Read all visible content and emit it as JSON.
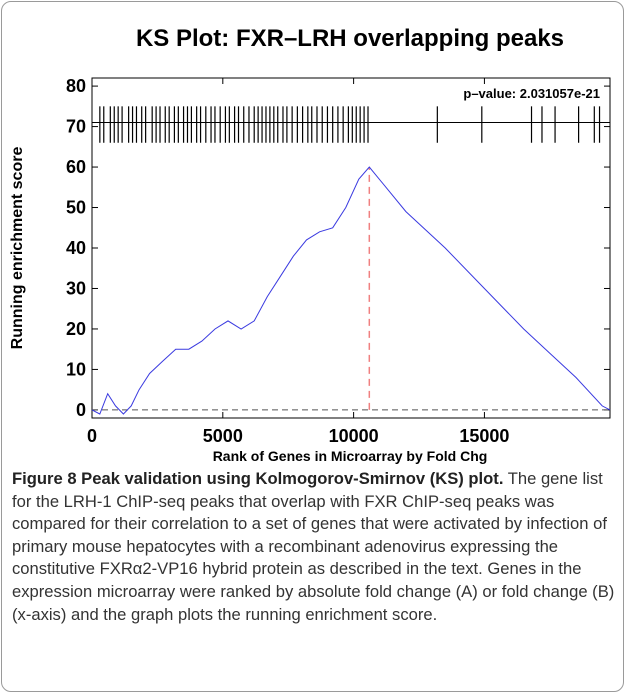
{
  "chart_data": {
    "type": "line",
    "title": "KS Plot: FXR–LRH overlapping peaks",
    "annotation": "p–value: 2.031057e-21",
    "xlabel": "Rank of Genes in Microarray by Fold Chg",
    "ylabel": "Running enrichment score",
    "xlim": [
      0,
      19800
    ],
    "ylim": [
      -2,
      82
    ],
    "xticks": [
      0,
      5000,
      10000,
      15000
    ],
    "yticks": [
      0,
      10,
      20,
      30,
      40,
      50,
      60,
      70,
      80
    ],
    "series": [
      {
        "name": "Running enrichment score",
        "color": "#3a3ae0",
        "x": [
          0,
          300,
          600,
          900,
          1200,
          1500,
          1800,
          2200,
          2700,
          3200,
          3700,
          4200,
          4700,
          5200,
          5700,
          6200,
          6700,
          7200,
          7700,
          8200,
          8700,
          9200,
          9700,
          10200,
          10600,
          12000,
          13500,
          15000,
          16500,
          17500,
          18500,
          19500,
          19800
        ],
        "values": [
          0,
          -1,
          4,
          1,
          -1,
          1,
          5,
          9,
          12,
          15,
          15,
          17,
          20,
          22,
          20,
          22,
          28,
          33,
          38,
          42,
          44,
          45,
          50,
          57,
          60,
          49,
          40,
          30,
          20,
          14,
          8,
          1,
          0
        ]
      }
    ],
    "max_position": 10600,
    "max_color": "#f08080",
    "baseline": 0,
    "hit_line": 71,
    "hit_band": [
      66,
      75
    ],
    "hits": [
      300,
      450,
      700,
      850,
      1000,
      1150,
      1400,
      1550,
      1700,
      1900,
      2050,
      2300,
      2450,
      2600,
      2800,
      2950,
      3150,
      3300,
      3500,
      3650,
      3800,
      4000,
      4150,
      4350,
      4550,
      4700,
      4900,
      5100,
      5250,
      5450,
      5600,
      5800,
      6000,
      6200,
      6350,
      6500,
      6650,
      6800,
      6950,
      7100,
      7300,
      7450,
      7650,
      7850,
      8050,
      8250,
      8400,
      8600,
      8800,
      9000,
      9200,
      9400,
      9600,
      9800,
      9950,
      10100,
      10250,
      10400,
      10550,
      13200,
      14900,
      16800,
      17200,
      17700,
      18600,
      19200,
      19400
    ]
  },
  "caption": {
    "label": "Figure 8",
    "title": "Peak validation using Kolmogorov-Smirnov (KS) plot.",
    "text": "The gene list for the LRH-1 ChIP-seq peaks that overlap with FXR ChIP-seq peaks was compared for their correlation to a set of genes that were activated by infection of primary mouse hepatocytes with a recombinant adenovirus expressing the constitutive FXRα2-VP16 hybrid protein as described in the text. Genes in the expression microarray were ranked by absolute fold change (A) or fold change (B) (x-axis) and the graph plots the running enrichment score."
  }
}
